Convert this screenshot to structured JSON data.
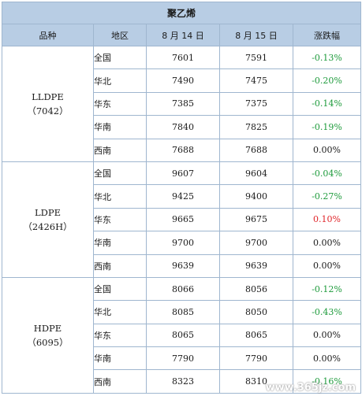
{
  "title": "聚乙烯",
  "headers": [
    "品种",
    "地区",
    "8 月 14 日",
    "8 月 15 日",
    "涨跌幅"
  ],
  "groups": [
    {
      "product": "LLDPE",
      "grade": "（7042）",
      "rows": [
        {
          "region": "全国",
          "d1": "7601",
          "d2": "7591",
          "chg": "-0.13%",
          "dir": "neg"
        },
        {
          "region": "华北",
          "d1": "7490",
          "d2": "7475",
          "chg": "-0.20%",
          "dir": "neg"
        },
        {
          "region": "华东",
          "d1": "7385",
          "d2": "7375",
          "chg": "-0.14%",
          "dir": "neg"
        },
        {
          "region": "华南",
          "d1": "7840",
          "d2": "7825",
          "chg": "-0.19%",
          "dir": "neg"
        },
        {
          "region": "西南",
          "d1": "7688",
          "d2": "7688",
          "chg": "0.00%",
          "dir": "zero"
        }
      ]
    },
    {
      "product": "LDPE",
      "grade": "（2426H）",
      "rows": [
        {
          "region": "全国",
          "d1": "9607",
          "d2": "9604",
          "chg": "-0.04%",
          "dir": "neg"
        },
        {
          "region": "华北",
          "d1": "9425",
          "d2": "9400",
          "chg": "-0.27%",
          "dir": "neg"
        },
        {
          "region": "华东",
          "d1": "9665",
          "d2": "9675",
          "chg": "0.10%",
          "dir": "pos"
        },
        {
          "region": "华南",
          "d1": "9700",
          "d2": "9700",
          "chg": "0.00%",
          "dir": "zero"
        },
        {
          "region": "西南",
          "d1": "9639",
          "d2": "9639",
          "chg": "0.00%",
          "dir": "zero"
        }
      ]
    },
    {
      "product": "HDPE",
      "grade": "（6095）",
      "rows": [
        {
          "region": "全国",
          "d1": "8066",
          "d2": "8056",
          "chg": "-0.12%",
          "dir": "neg"
        },
        {
          "region": "华北",
          "d1": "8085",
          "d2": "8050",
          "chg": "-0.43%",
          "dir": "neg"
        },
        {
          "region": "华东",
          "d1": "8065",
          "d2": "8065",
          "chg": "0.00%",
          "dir": "zero"
        },
        {
          "region": "华南",
          "d1": "7790",
          "d2": "7790",
          "chg": "0.00%",
          "dir": "zero"
        },
        {
          "region": "西南",
          "d1": "8323",
          "d2": "8310",
          "chg": "-0.16%",
          "dir": "neg"
        }
      ]
    }
  ],
  "watermark": "www.365jz.com"
}
